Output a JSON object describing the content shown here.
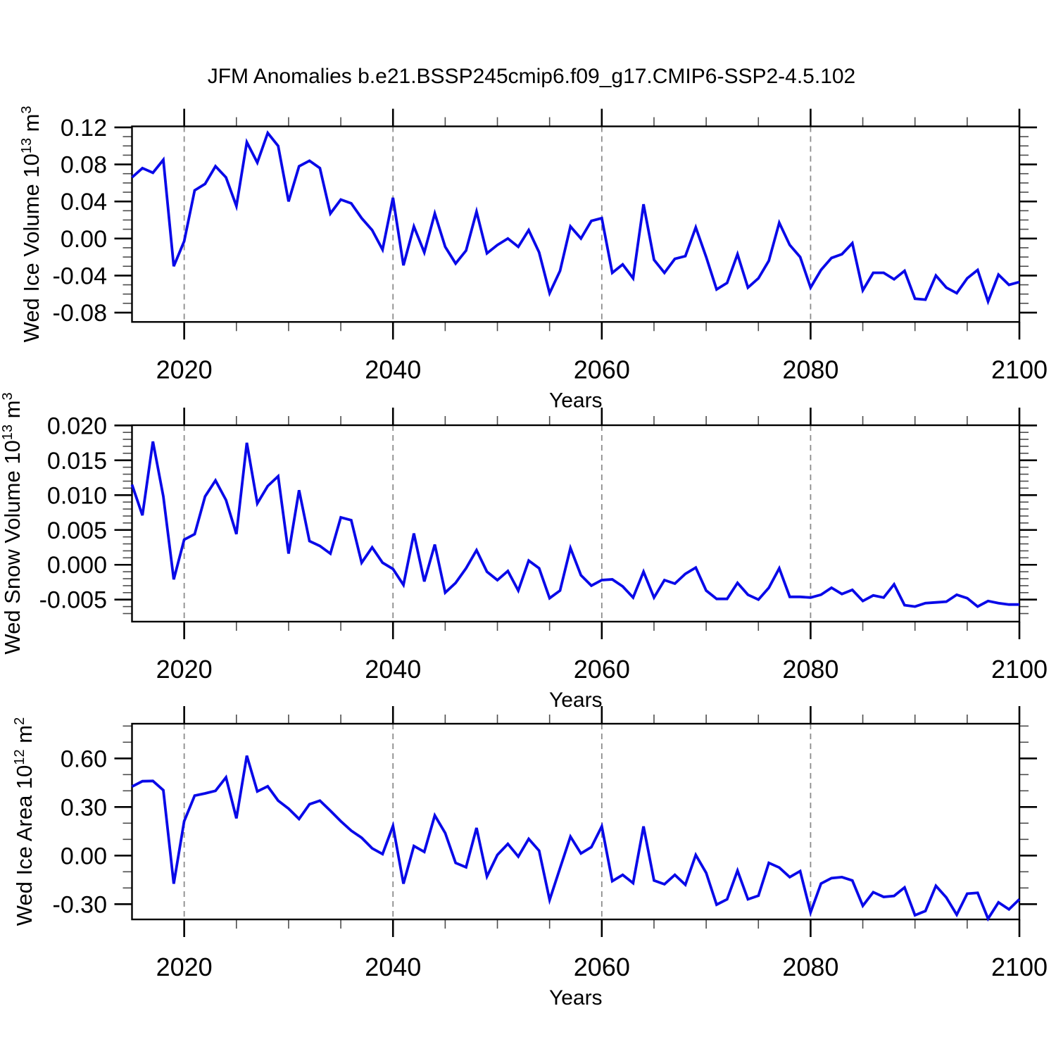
{
  "title": "JFM Anomalies b.e21.BSSP245cmip6.f09_g17.CMIP6-SSP2-4.5.102",
  "chart_data": {
    "type": "line",
    "title": "JFM Anomalies b.e21.BSSP245cmip6.f09_g17.CMIP6-SSP2-4.5.102",
    "line_color": "#0909e8",
    "grid": "dashed vertical at decade ticks",
    "legend": "none",
    "x": {
      "label": "Years",
      "range": [
        2015,
        2100
      ],
      "ticks": [
        2020,
        2040,
        2060,
        2080,
        2100
      ],
      "tick_labels": [
        "2020",
        "2040",
        "2060",
        "2080",
        "2100"
      ],
      "minor_step": 5,
      "gridlines": [
        2020,
        2040,
        2060,
        2080
      ]
    },
    "panels": [
      {
        "name": "ice-volume",
        "ylabel_text": "Wed Ice Volume 10¹³ m³",
        "ylabel_parts": [
          {
            "t": "Wed Ice Volume 10"
          },
          {
            "t": "13",
            "sup": true
          },
          {
            "t": " m"
          },
          {
            "t": "3",
            "sup": true
          }
        ],
        "yticks": [
          0.12,
          0.08,
          0.04,
          0.0,
          -0.04,
          -0.08
        ],
        "ytick_labels": [
          "0.12",
          "0.08",
          "0.04",
          "0.00",
          "-0.04",
          "-0.08"
        ],
        "minor_step": 0.01,
        "ylim": [
          -0.0901,
          0.1211
        ],
        "values": [
          0.066,
          0.076,
          0.071,
          0.085,
          -0.03,
          -0.003,
          0.052,
          0.059,
          0.078,
          0.066,
          0.035,
          0.104,
          0.082,
          0.114,
          0.1,
          0.04,
          0.078,
          0.084,
          0.076,
          0.027,
          0.042,
          0.038,
          0.022,
          0.009,
          -0.012,
          0.044,
          -0.029,
          0.013,
          -0.015,
          0.027,
          -0.009,
          -0.027,
          -0.013,
          0.029,
          -0.016,
          -0.007,
          0.0,
          -0.009,
          0.009,
          -0.015,
          -0.059,
          -0.035,
          0.013,
          0.0,
          0.019,
          0.022,
          -0.037,
          -0.028,
          -0.043,
          0.037,
          -0.023,
          -0.037,
          -0.022,
          -0.019,
          0.012,
          -0.02,
          -0.055,
          -0.048,
          -0.017,
          -0.053,
          -0.043,
          -0.024,
          0.017,
          -0.007,
          -0.02,
          -0.053,
          -0.034,
          -0.021,
          -0.017,
          -0.005,
          -0.056,
          -0.037,
          -0.037,
          -0.044,
          -0.035,
          -0.065,
          -0.066,
          -0.04,
          -0.053,
          -0.059,
          -0.043,
          -0.034,
          -0.068,
          -0.039,
          -0.05,
          -0.047
        ]
      },
      {
        "name": "snow-volume",
        "ylabel_text": "Wed Snow Volume 10¹³ m³",
        "ylabel_parts": [
          {
            "t": "Wed Snow Volume 10"
          },
          {
            "t": "13",
            "sup": true
          },
          {
            "t": " m"
          },
          {
            "t": "3",
            "sup": true
          }
        ],
        "yticks": [
          0.02,
          0.015,
          0.01,
          0.005,
          0.0,
          -0.005
        ],
        "ytick_labels": [
          "0.020",
          "0.015",
          "0.010",
          "0.005",
          "0.000",
          "-0.005"
        ],
        "minor_step": 0.001,
        "ylim": [
          -0.00816,
          0.02003
        ],
        "values": [
          0.0115,
          0.0071,
          0.0177,
          0.0098,
          -0.0021,
          0.0036,
          0.0044,
          0.0098,
          0.0121,
          0.0093,
          0.0044,
          0.0175,
          0.0088,
          0.0113,
          0.0127,
          0.0016,
          0.0107,
          0.0034,
          0.0027,
          0.0016,
          0.0068,
          0.0064,
          0.0003,
          0.0025,
          0.0003,
          -0.0006,
          -0.0029,
          0.0045,
          -0.0024,
          0.0029,
          -0.004,
          -0.0026,
          -0.0005,
          0.0021,
          -0.001,
          -0.0022,
          -0.0009,
          -0.0037,
          0.0006,
          -0.0005,
          -0.0048,
          -0.0037,
          0.0024,
          -0.0015,
          -0.003,
          -0.0022,
          -0.0021,
          -0.0031,
          -0.0047,
          -0.001,
          -0.0047,
          -0.0022,
          -0.0027,
          -0.0013,
          -0.0004,
          -0.0037,
          -0.0049,
          -0.0049,
          -0.0026,
          -0.0043,
          -0.005,
          -0.0033,
          -0.0005,
          -0.0046,
          -0.0046,
          -0.0047,
          -0.0043,
          -0.0033,
          -0.0042,
          -0.0036,
          -0.0052,
          -0.0044,
          -0.0047,
          -0.0028,
          -0.0058,
          -0.006,
          -0.0055,
          -0.0054,
          -0.0053,
          -0.0043,
          -0.0048,
          -0.006,
          -0.0052,
          -0.0055,
          -0.0057,
          -0.0057
        ]
      },
      {
        "name": "ice-area",
        "ylabel_text": "Wed Ice Area 10¹² m²",
        "ylabel_parts": [
          {
            "t": "Wed Ice Area 10"
          },
          {
            "t": "12",
            "sup": true
          },
          {
            "t": " m"
          },
          {
            "t": "2",
            "sup": true
          }
        ],
        "yticks": [
          0.6,
          0.3,
          0.0,
          -0.3
        ],
        "ytick_labels": [
          "0.60",
          "0.30",
          "0.00",
          "-0.30"
        ],
        "minor_step": 0.1,
        "ylim": [
          -0.3943,
          0.8143
        ],
        "values": [
          0.426,
          0.459,
          0.461,
          0.404,
          -0.174,
          0.212,
          0.37,
          0.384,
          0.4,
          0.483,
          0.23,
          0.617,
          0.396,
          0.428,
          0.339,
          0.29,
          0.226,
          0.317,
          0.339,
          0.277,
          0.212,
          0.154,
          0.11,
          0.045,
          0.009,
          0.183,
          -0.174,
          0.059,
          0.023,
          0.248,
          0.139,
          -0.045,
          -0.072,
          0.171,
          -0.129,
          0.004,
          0.072,
          -0.006,
          0.103,
          0.03,
          -0.274,
          -0.078,
          0.117,
          0.013,
          0.052,
          0.18,
          -0.158,
          -0.119,
          -0.17,
          0.18,
          -0.154,
          -0.177,
          -0.119,
          -0.18,
          0.004,
          -0.107,
          -0.303,
          -0.27,
          -0.093,
          -0.27,
          -0.248,
          -0.045,
          -0.074,
          -0.133,
          -0.096,
          -0.351,
          -0.173,
          -0.139,
          -0.133,
          -0.154,
          -0.31,
          -0.226,
          -0.255,
          -0.249,
          -0.197,
          -0.368,
          -0.342,
          -0.187,
          -0.259,
          -0.365,
          -0.235,
          -0.23,
          -0.39,
          -0.289,
          -0.332,
          -0.27
        ]
      }
    ]
  }
}
